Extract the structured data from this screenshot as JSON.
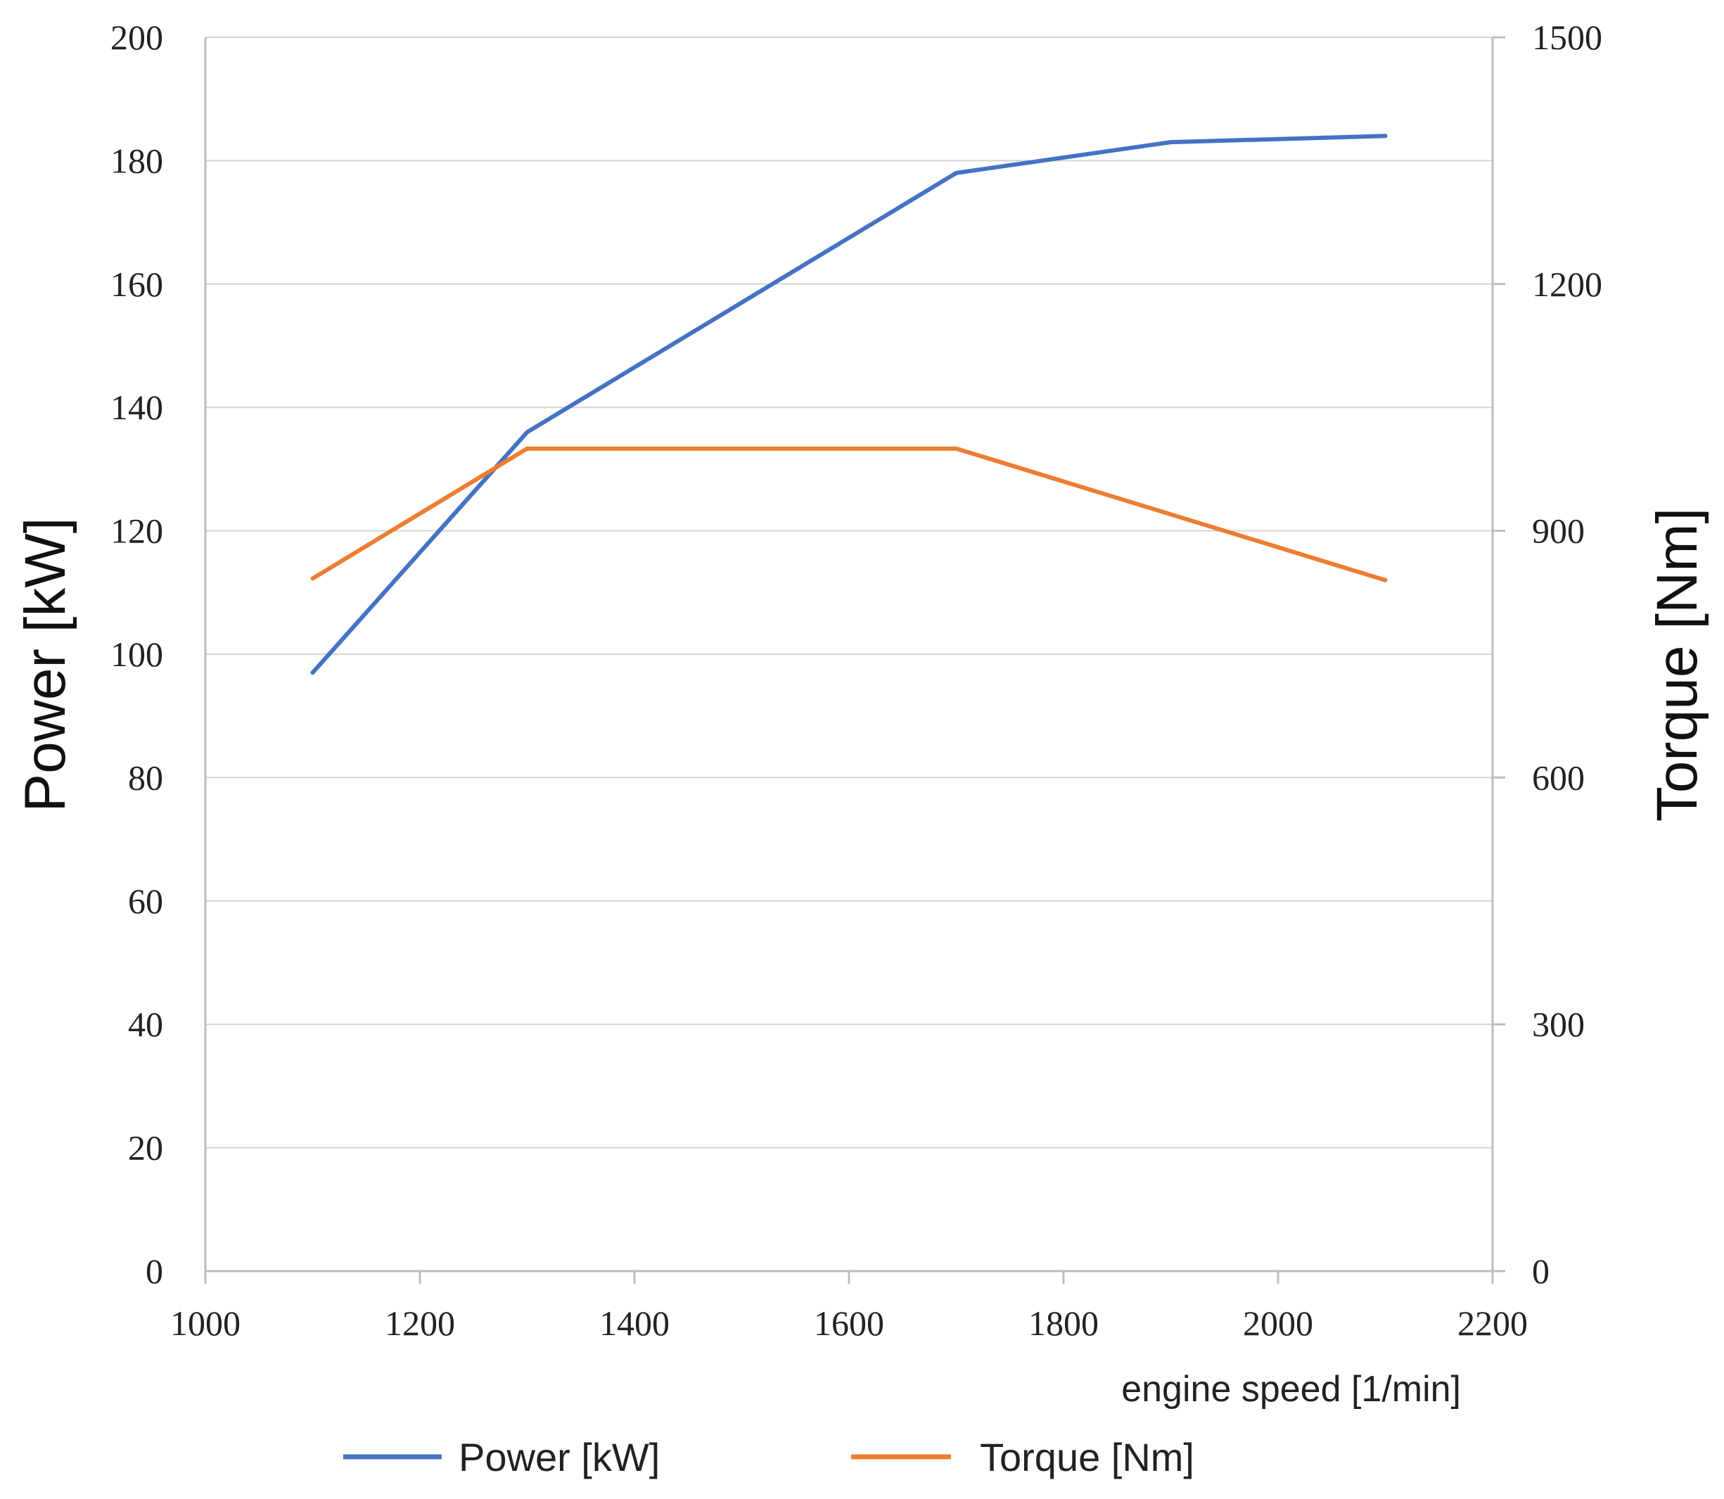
{
  "chart_data": {
    "type": "line",
    "title": "",
    "xlabel": "engine speed [1/min]",
    "ylabel": "Power [kW]",
    "y2label": "Torque [Nm]",
    "xlim": [
      1000,
      2200
    ],
    "ylim": [
      0,
      200
    ],
    "y2lim": [
      0,
      1500
    ],
    "x_ticks": [
      "1000",
      "1200",
      "1400",
      "1600",
      "1800",
      "2000",
      "2200"
    ],
    "y_ticks": [
      "0",
      "20",
      "40",
      "60",
      "80",
      "100",
      "120",
      "140",
      "160",
      "180",
      "200"
    ],
    "y2_ticks": [
      "0",
      "300",
      "600",
      "900",
      "1200",
      "1500"
    ],
    "grid": true,
    "legend_position": "bottom",
    "series": [
      {
        "name": "Power [kW]",
        "axis": "left",
        "color": "#4472c4",
        "x": [
          1100,
          1300,
          1700,
          1900,
          2100
        ],
        "values": [
          97,
          136,
          178,
          183,
          184
        ]
      },
      {
        "name": "Torque [Nm]",
        "axis": "right",
        "color": "#ed7d31",
        "x": [
          1100,
          1300,
          1700,
          1900,
          2100
        ],
        "values": [
          842,
          1000,
          1000,
          920,
          840
        ]
      }
    ]
  }
}
